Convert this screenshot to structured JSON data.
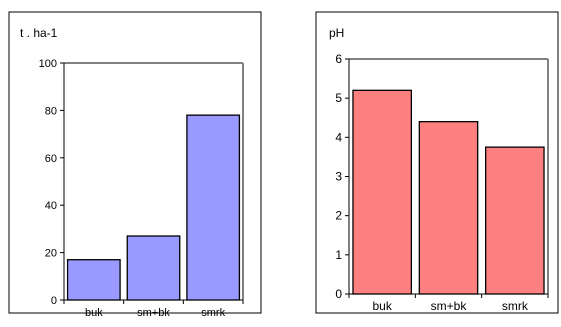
{
  "chart_data": [
    {
      "type": "bar",
      "title": "",
      "ylabel": "t . ha-1",
      "xlabel": "",
      "categories": [
        "buk",
        "sm+bk",
        "smrk"
      ],
      "values": [
        17,
        27,
        78
      ],
      "ylim": [
        0,
        100
      ],
      "yticks": [
        0,
        20,
        40,
        60,
        80,
        100
      ],
      "bar_color": "#9999ff",
      "grid": false,
      "legend": "none"
    },
    {
      "type": "bar",
      "title": "",
      "ylabel": "pH",
      "xlabel": "",
      "categories": [
        "buk",
        "sm+bk",
        "smrk"
      ],
      "values": [
        5.2,
        4.4,
        3.75
      ],
      "ylim": [
        0,
        6
      ],
      "yticks": [
        0,
        1,
        2,
        3,
        4,
        5,
        6
      ],
      "bar_color": "#ff8080",
      "grid": false,
      "legend": "none"
    }
  ]
}
